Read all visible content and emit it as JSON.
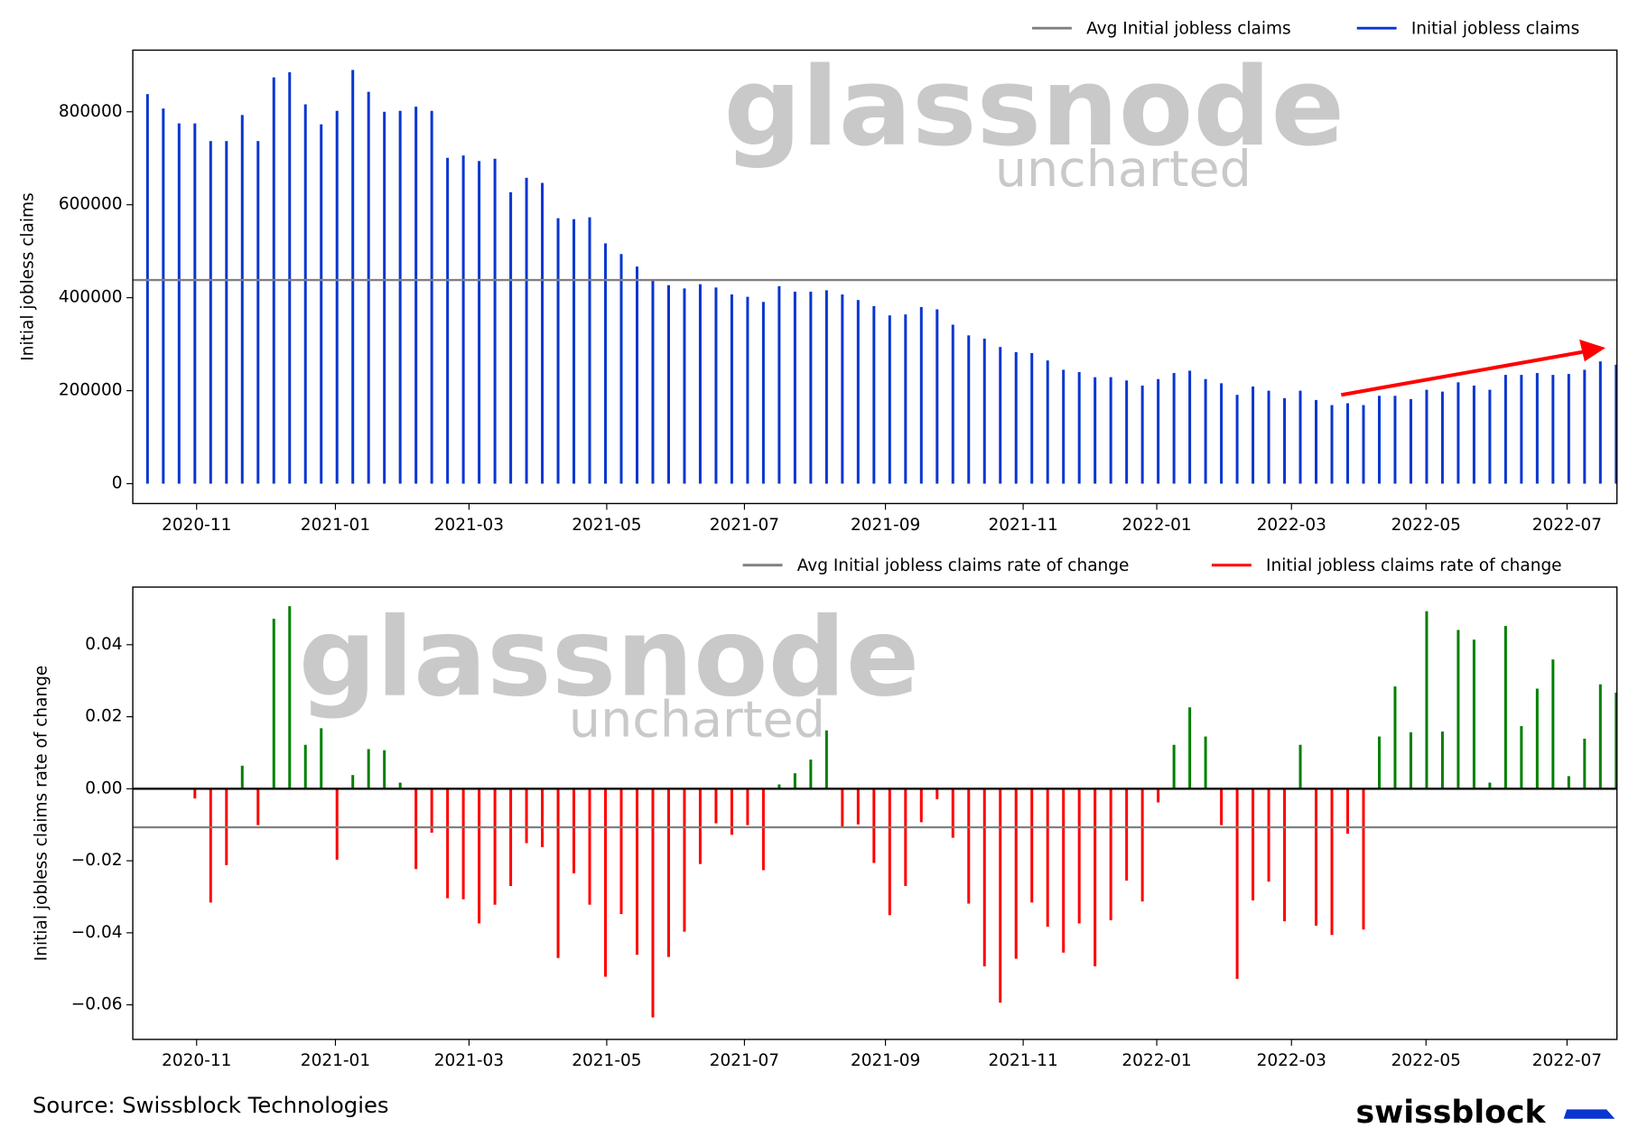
{
  "chart_data": [
    {
      "type": "bar",
      "y_label": "Initial jobless claims",
      "categories": [
        null,
        null,
        null,
        null,
        null,
        null,
        null,
        null,
        null,
        null,
        null,
        null,
        null,
        null,
        null,
        null,
        null,
        null,
        null,
        null,
        null,
        null,
        null,
        null,
        null,
        null,
        null,
        null,
        null,
        null,
        null,
        null,
        null,
        null,
        null,
        null,
        null,
        null,
        null,
        null,
        null,
        null,
        null,
        null,
        null,
        null,
        null,
        null,
        null,
        null,
        null,
        null,
        null,
        null,
        null,
        null,
        null,
        null,
        null,
        null,
        null,
        null,
        null,
        null,
        null,
        null,
        null,
        null,
        null,
        null,
        null,
        null,
        null,
        null,
        null,
        null,
        null,
        null,
        null,
        null,
        null,
        null,
        null,
        null,
        null,
        null,
        null,
        null,
        null,
        null,
        null,
        null,
        null,
        null
      ],
      "series": [
        {
          "name": "Initial jobless claims",
          "color": "#0a36d0",
          "values": [
            838000,
            807000,
            775000,
            775000,
            737000,
            737000,
            793000,
            737000,
            874000,
            885000,
            816000,
            773000,
            802000,
            890000,
            843000,
            800000,
            802000,
            811000,
            802000,
            701000,
            706000,
            694000,
            699000,
            627000,
            658000,
            647000,
            571000,
            569000,
            573000,
            517000,
            494000,
            467000,
            438000,
            427000,
            420000,
            429000,
            422000,
            407000,
            402000,
            391000,
            425000,
            413000,
            413000,
            416000,
            407000,
            395000,
            382000,
            362000,
            364000,
            380000,
            375000,
            342000,
            319000,
            312000,
            294000,
            283000,
            281000,
            265000,
            245000,
            240000,
            229000,
            229000,
            222000,
            211000,
            225000,
            238000,
            243000,
            225000,
            216000,
            191000,
            209000,
            200000,
            184000,
            200000,
            180000,
            169000,
            173000,
            169000,
            189000,
            189000,
            182000,
            202000,
            198000,
            218000,
            211000,
            202000,
            234000,
            234000,
            238000,
            234000,
            236000,
            245000,
            263000,
            256000
          ]
        }
      ],
      "average": {
        "name": "Avg Initial jobless claims",
        "color": "#808080",
        "value": 438000
      },
      "xlim": [
        -0.93,
        93.05
      ],
      "xticks": [
        {
          "value": 3.11,
          "label": "2020-11"
        },
        {
          "value": 11.9,
          "label": "2021-01"
        },
        {
          "value": 20.36,
          "label": "2021-03"
        },
        {
          "value": 29.08,
          "label": "2021-05"
        },
        {
          "value": 37.8,
          "label": "2021-07"
        },
        {
          "value": 46.73,
          "label": "2021-09"
        },
        {
          "value": 55.45,
          "label": "2021-11"
        },
        {
          "value": 63.91,
          "label": "2022-01"
        },
        {
          "value": 72.44,
          "label": "2022-03"
        },
        {
          "value": 80.96,
          "label": "2022-05"
        },
        {
          "value": 89.89,
          "label": "2022-07"
        }
      ],
      "ylim": [
        -42700,
        932600
      ],
      "yticks": [
        0,
        200000,
        400000,
        600000,
        800000
      ],
      "zero_line": false,
      "watermark": {
        "title": "glassnode",
        "subtitle": "uncharted"
      }
    },
    {
      "type": "bar",
      "y_label": "Initial jobless claims rate of change",
      "categories": [
        null,
        null,
        null,
        null,
        null,
        null,
        null,
        null,
        null,
        null,
        null,
        null,
        null,
        null,
        null,
        null,
        null,
        null,
        null,
        null,
        null,
        null,
        null,
        null,
        null,
        null,
        null,
        null,
        null,
        null,
        null,
        null,
        null,
        null,
        null,
        null,
        null,
        null,
        null,
        null,
        null,
        null,
        null,
        null,
        null,
        null,
        null,
        null,
        null,
        null,
        null,
        null,
        null,
        null,
        null,
        null,
        null,
        null,
        null,
        null,
        null,
        null,
        null,
        null,
        null,
        null,
        null,
        null,
        null,
        null,
        null,
        null,
        null,
        null,
        null,
        null,
        null,
        null,
        null,
        null,
        null,
        null,
        null,
        null,
        null,
        null,
        null,
        null,
        null,
        null,
        null,
        null,
        null,
        null
      ],
      "series": [
        {
          "name": "Initial jobless claims rate of change",
          "color": "#ff0000",
          "positive_color": "#008000",
          "values": [
            null,
            null,
            null,
            -0.0027,
            -0.0316,
            -0.0212,
            0.0064,
            -0.0101,
            0.0472,
            0.0507,
            0.0122,
            0.0168,
            -0.0197,
            0.0038,
            0.011,
            0.0107,
            0.0017,
            -0.0223,
            -0.0122,
            -0.0304,
            -0.0307,
            -0.0374,
            -0.0322,
            -0.027,
            -0.0151,
            -0.0162,
            -0.047,
            -0.0235,
            -0.0322,
            -0.0522,
            -0.0348,
            -0.0461,
            -0.0635,
            -0.0467,
            -0.0397,
            -0.0209,
            -0.0096,
            -0.0128,
            -0.0101,
            -0.0226,
            0.0012,
            0.0043,
            0.0081,
            0.0162,
            -0.0107,
            -0.0099,
            -0.0206,
            -0.0351,
            -0.027,
            -0.0093,
            -0.0029,
            -0.0136,
            -0.0319,
            -0.0493,
            -0.0594,
            -0.0472,
            -0.0316,
            -0.0383,
            -0.0455,
            -0.0374,
            -0.0493,
            -0.0365,
            -0.0255,
            -0.0313,
            -0.0038,
            0.0122,
            0.0226,
            0.0145,
            -0.0101,
            -0.0528,
            -0.031,
            -0.0258,
            -0.0368,
            0.0122,
            -0.038,
            -0.0406,
            -0.0125,
            -0.0391,
            0.0145,
            0.0284,
            0.0157,
            0.0493,
            0.0159,
            0.0441,
            0.0414,
            0.0017,
            0.0452,
            0.0174,
            0.0278,
            0.0359,
            0.0035,
            0.0139,
            0.029,
            0.0267
          ]
        }
      ],
      "average": {
        "name": "Avg Initial jobless claims rate of change",
        "color": "#808080",
        "value": -0.0107
      },
      "xlim": [
        -0.93,
        93.05
      ],
      "xticks": [
        {
          "value": 3.11,
          "label": "2020-11"
        },
        {
          "value": 11.9,
          "label": "2021-01"
        },
        {
          "value": 20.36,
          "label": "2021-03"
        },
        {
          "value": 29.08,
          "label": "2021-05"
        },
        {
          "value": 37.8,
          "label": "2021-07"
        },
        {
          "value": 46.73,
          "label": "2021-09"
        },
        {
          "value": 55.45,
          "label": "2021-11"
        },
        {
          "value": 63.91,
          "label": "2022-01"
        },
        {
          "value": 72.44,
          "label": "2022-03"
        },
        {
          "value": 80.96,
          "label": "2022-05"
        },
        {
          "value": 89.89,
          "label": "2022-07"
        }
      ],
      "ylim": [
        -0.0696,
        0.056
      ],
      "yticks": [
        {
          "value": -0.06,
          "label": "−0.06"
        },
        {
          "value": -0.04,
          "label": "−0.04"
        },
        {
          "value": -0.02,
          "label": "−0.02"
        },
        {
          "value": 0,
          "label": "0.00"
        },
        {
          "value": 0.02,
          "label": "0.02"
        },
        {
          "value": 0.04,
          "label": "0.04"
        }
      ],
      "zero_line": true,
      "watermark": {
        "title": "glassnode",
        "subtitle": "uncharted"
      }
    }
  ],
  "source": "Source: Swissblock Technologies",
  "logo": "swissblock"
}
